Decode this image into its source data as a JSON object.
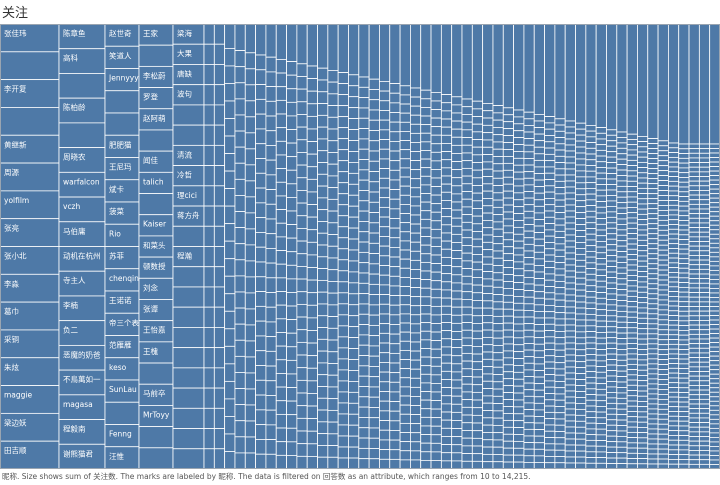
{
  "title": "关注",
  "caption": "昵称. Size shows sum of 关注数. The marks are labeled by 昵称. The data is filtered on 回答数 as an attribute, which ranges from 10 to 14,215.",
  "chart_data": {
    "type": "treemap",
    "title": "关注",
    "size_measure": "关注数",
    "label_field": "昵称",
    "filter": {
      "field": "回答数",
      "min": 10,
      "max": 14215
    },
    "color": "#4e79a7",
    "border_color": "#ffffff",
    "label_color": "#ffffff",
    "columns": [
      {
        "labels": [
          "张佳玮",
          "",
          "李开复",
          "",
          "黄继新",
          "周源",
          "yolfilm",
          "张亮",
          "张小北",
          "李淼",
          "葛巾",
          "采铜",
          "朱炫",
          "maggie",
          "梁边妖",
          "田吉顺"
        ]
      },
      {
        "labels": [
          "陈章鱼",
          "高科",
          "",
          "陈柏龄",
          "",
          "周晓农",
          "warfalcon",
          "vczh",
          "马伯庸",
          "动机在杭州",
          "寺主人",
          "李楠",
          "负二",
          "恶魔的奶爸",
          "不鳥萬如一",
          "magasa",
          "程毅南",
          "谢熊猫君"
        ]
      },
      {
        "labels": [
          "赵世奇",
          "笑道人",
          "Jennyyy",
          "",
          "",
          "肥肥猫",
          "王尼玛",
          "斌卡",
          "菠菜",
          "Rio",
          "苏菲",
          "chenqin",
          "王诺诺",
          "帝三个表",
          "范雁雁",
          "keso",
          "SunLau",
          "",
          "Fenng",
          "汪惟"
        ]
      },
      {
        "labels": [
          "王家",
          "",
          "李松蔚",
          "罗登",
          "赵阿萌",
          "",
          "闻佳",
          "talich",
          "",
          "Kaiser",
          "和菜头",
          "顿数授",
          "刘念",
          "张谭",
          "王怡嘉",
          "王槐",
          "",
          "马前卒",
          "MrToyy",
          "",
          ""
        ]
      },
      {
        "labels": [
          "梁海",
          "大果",
          "唐缺",
          "波句",
          "",
          "",
          "清流",
          "冷哲",
          "理cici",
          "蒋方舟",
          "",
          "程瀚",
          "",
          "",
          "",
          "",
          "",
          "",
          "",
          "",
          "",
          ""
        ]
      }
    ],
    "unlabeled_columns": [
      22,
      22,
      24,
      26,
      26,
      28,
      28,
      30,
      30,
      32,
      32,
      34,
      34,
      36,
      36,
      38,
      38,
      40,
      40,
      42,
      42,
      44,
      44,
      46,
      46,
      48,
      48,
      50,
      50,
      52,
      52,
      54,
      54,
      56,
      56,
      58,
      58,
      60,
      60,
      62,
      62,
      64,
      64,
      66,
      66,
      68,
      68,
      70,
      70,
      72
    ]
  }
}
